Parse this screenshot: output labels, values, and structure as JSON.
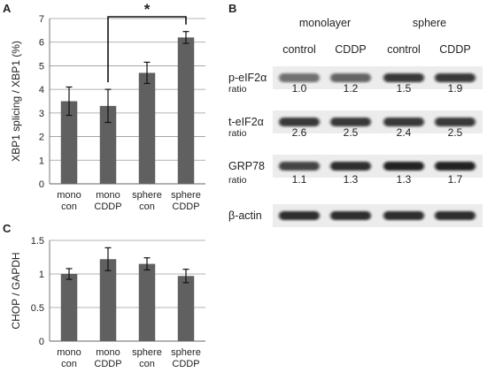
{
  "panels": {
    "a": {
      "letter": "A",
      "chart_data": {
        "type": "bar",
        "categories": [
          [
            "mono",
            "con"
          ],
          [
            "mono",
            "CDDP"
          ],
          [
            "sphere",
            "con"
          ],
          [
            "sphere",
            "CDDP"
          ]
        ],
        "values": [
          3.5,
          3.3,
          4.7,
          6.2
        ],
        "errors": [
          0.6,
          0.7,
          0.45,
          0.25
        ],
        "ylabel": "XBP1 splicing / XBP1 (%)",
        "ylim": [
          0,
          7
        ],
        "yticks": [
          0,
          1,
          2,
          3,
          4,
          5,
          6,
          7
        ],
        "grid": true,
        "bar_color": "#606060",
        "significance": {
          "between": [
            1,
            3
          ],
          "label": "*"
        }
      }
    },
    "b": {
      "letter": "B",
      "group_headers": [
        "monolayer",
        "sphere"
      ],
      "lane_labels": [
        "control",
        "CDDP",
        "control",
        "CDDP"
      ],
      "blots": [
        {
          "label": "p-eIF2α",
          "band_intensity": [
            0.55,
            0.6,
            0.8,
            0.8
          ]
        },
        {
          "label": "t-eIF2α",
          "band_intensity": [
            0.8,
            0.8,
            0.8,
            0.8
          ]
        },
        {
          "label": "GRP78",
          "band_intensity": [
            0.75,
            0.85,
            0.9,
            0.9
          ]
        },
        {
          "label": "β-actin",
          "band_intensity": [
            0.85,
            0.85,
            0.85,
            0.85
          ]
        }
      ],
      "ratio_rows": [
        {
          "label": "ratio",
          "values": [
            "1.0",
            "1.2",
            "1.5",
            "1.9"
          ]
        },
        {
          "label": "ratio",
          "values": [
            "2.6",
            "2.5",
            "2.4",
            "2.5"
          ]
        },
        {
          "label": "ratio",
          "values": [
            "1.1",
            "1.3",
            "1.3",
            "1.7"
          ]
        }
      ]
    },
    "c": {
      "letter": "C",
      "chart_data": {
        "type": "bar",
        "categories": [
          [
            "mono",
            "con"
          ],
          [
            "mono",
            "CDDP"
          ],
          [
            "sphere",
            "con"
          ],
          [
            "sphere",
            "CDDP"
          ]
        ],
        "values": [
          1.0,
          1.22,
          1.15,
          0.97
        ],
        "errors": [
          0.08,
          0.17,
          0.09,
          0.1
        ],
        "ylabel": "CHOP / GAPDH",
        "ylim": [
          0,
          1.5
        ],
        "yticks": [
          "0",
          "0.5",
          "1",
          "1.5"
        ],
        "grid": true,
        "bar_color": "#606060"
      }
    }
  }
}
